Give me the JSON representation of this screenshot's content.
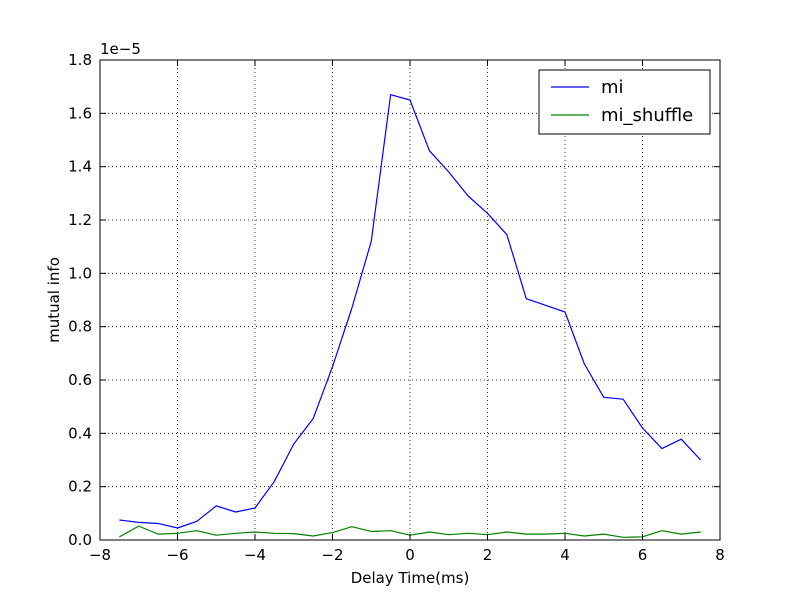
{
  "chart_data": {
    "type": "line",
    "title": "",
    "xlabel": "Delay Time(ms)",
    "ylabel": "mutual info",
    "y_offset_label": "1e−5",
    "xlim": [
      -8,
      8
    ],
    "ylim": [
      0.0,
      1.8
    ],
    "grid": true,
    "grid_style": "dotted",
    "legend_position": "top-right",
    "x_ticks": [
      -8,
      -6,
      -4,
      -2,
      0,
      2,
      4,
      6,
      8
    ],
    "x_tick_labels": [
      "−8",
      "−6",
      "−4",
      "−2",
      "0",
      "2",
      "4",
      "6",
      "8"
    ],
    "y_ticks": [
      0.0,
      0.2,
      0.4,
      0.6,
      0.8,
      1.0,
      1.2,
      1.4,
      1.6,
      1.8
    ],
    "y_tick_labels": [
      "0.0",
      "0.2",
      "0.4",
      "0.6",
      "0.8",
      "1.0",
      "1.2",
      "1.4",
      "1.6",
      "1.8"
    ],
    "x": [
      -7.5,
      -7.0,
      -6.5,
      -6.0,
      -5.5,
      -5.0,
      -4.5,
      -4.0,
      -3.5,
      -3.0,
      -2.5,
      -2.0,
      -1.5,
      -1.0,
      -0.5,
      0.0,
      0.5,
      1.0,
      1.5,
      2.0,
      2.5,
      3.0,
      3.5,
      4.0,
      4.5,
      5.0,
      5.5,
      6.0,
      6.5,
      7.0,
      7.5
    ],
    "series": [
      {
        "name": "mi",
        "color": "#0000ff",
        "values": [
          0.075,
          0.066,
          0.062,
          0.045,
          0.07,
          0.128,
          0.105,
          0.12,
          0.22,
          0.36,
          0.455,
          0.65,
          0.87,
          1.12,
          1.67,
          1.65,
          1.46,
          1.38,
          1.29,
          1.225,
          1.145,
          0.905,
          0.88,
          0.855,
          0.66,
          0.535,
          0.528,
          0.42,
          0.343,
          0.378,
          0.3
        ]
      },
      {
        "name": "mi_shuffle",
        "color": "#008000",
        "values": [
          0.012,
          0.052,
          0.022,
          0.025,
          0.035,
          0.018,
          0.025,
          0.03,
          0.025,
          0.024,
          0.015,
          0.028,
          0.05,
          0.032,
          0.035,
          0.018,
          0.03,
          0.02,
          0.025,
          0.02,
          0.03,
          0.022,
          0.022,
          0.025,
          0.015,
          0.022,
          0.01,
          0.012,
          0.035,
          0.022,
          0.03
        ]
      }
    ]
  }
}
